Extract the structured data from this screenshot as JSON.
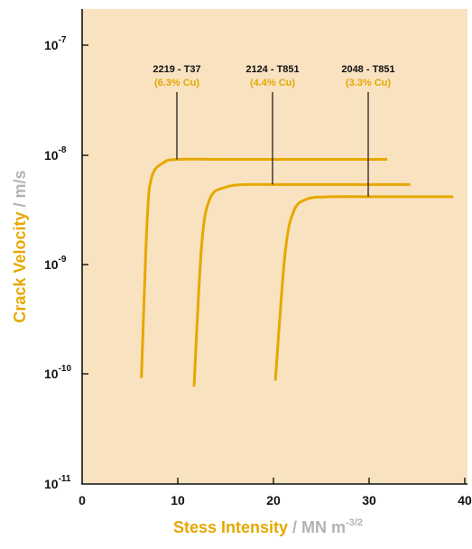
{
  "chart_data": {
    "type": "line",
    "title": "",
    "xlabel": {
      "main": "Stess Intensity",
      "sep": " / ",
      "unit": "MN m",
      "unit_exp": "-3/2"
    },
    "ylabel": {
      "main": "Crack Velocity",
      "sep": " / ",
      "unit": "m/s"
    },
    "xlim": [
      0,
      40
    ],
    "ylim": [
      1e-11,
      1e-07
    ],
    "yscale": "log",
    "x_ticks": [
      "0",
      "10",
      "20",
      "30",
      "40"
    ],
    "y_ticks": [
      {
        "base": "10",
        "exp": "-7"
      },
      {
        "base": "10",
        "exp": "-8"
      },
      {
        "base": "10",
        "exp": "-9"
      },
      {
        "base": "10",
        "exp": "-10"
      },
      {
        "base": "10",
        "exp": "-11"
      }
    ],
    "series": [
      {
        "name": "2219 - T37",
        "annotation": "(6.3% Cu)",
        "x": [
          6.2,
          6.8,
          7.3,
          8.5,
          10,
          15,
          20,
          25,
          31.9
        ],
        "y": [
          9e-11,
          2.5e-09,
          6.3e-09,
          8.4e-09,
          9e-09,
          9e-09,
          9e-09,
          9e-09,
          9e-09
        ]
      },
      {
        "name": "2124 - T851",
        "annotation": "(4.4% Cu)",
        "x": [
          11.7,
          12.5,
          13.4,
          15,
          17,
          20,
          25,
          30,
          34.3
        ],
        "y": [
          7.5e-11,
          1.5e-09,
          4e-09,
          5e-09,
          5.3e-09,
          5.3e-09,
          5.3e-09,
          5.3e-09,
          5.3e-09
        ]
      },
      {
        "name": "2048 - T851",
        "annotation": "(3.3% Cu)",
        "x": [
          20.2,
          21.2,
          22.1,
          23.5,
          26,
          30,
          35,
          38.8
        ],
        "y": [
          8.5e-11,
          1.2e-09,
          3e-09,
          3.9e-09,
          4.1e-09,
          4.1e-09,
          4.1e-09,
          4.1e-09
        ]
      }
    ],
    "grid": false,
    "colors": {
      "curve": "#e6a800",
      "plot_bg": "#f9e2c0",
      "axis": "#111111",
      "label_main": "#e6a800",
      "label_unit": "#b3b3b3"
    }
  }
}
